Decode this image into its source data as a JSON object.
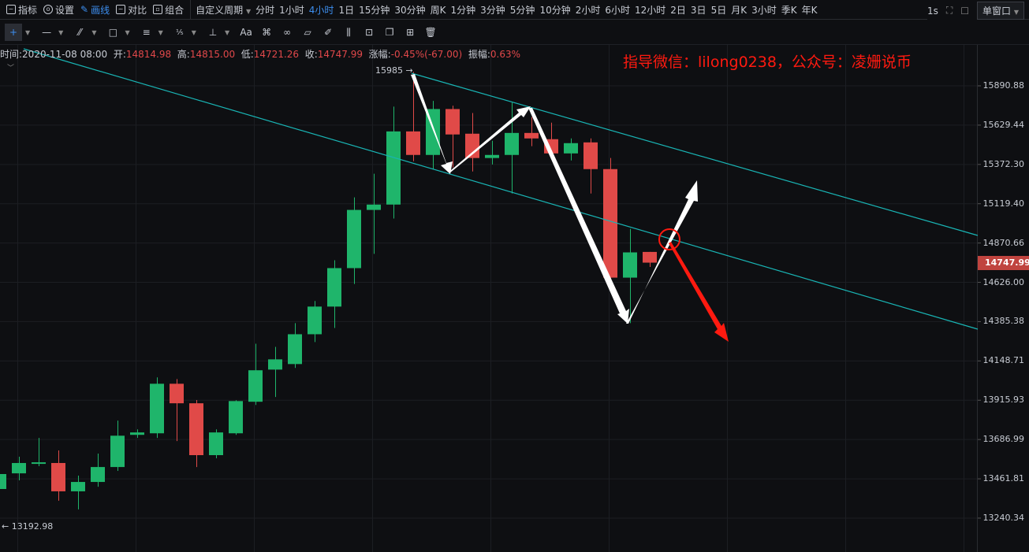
{
  "toolbar": {
    "items": [
      {
        "label": "指标",
        "icon": "chart-icon"
      },
      {
        "label": "设置",
        "icon": "gear-icon"
      },
      {
        "label": "画线",
        "icon": "pencil-icon",
        "active": true
      },
      {
        "label": "对比",
        "icon": "compare-icon"
      },
      {
        "label": "组合",
        "icon": "combine-icon"
      }
    ],
    "custom_period": "自定义周期",
    "periods": [
      "分时",
      "1小时",
      "4小时",
      "1日",
      "15分钟",
      "30分钟",
      "周K",
      "1分钟",
      "3分钟",
      "5分钟",
      "10分钟",
      "2小时",
      "6小时",
      "12小时",
      "2日",
      "3日",
      "5日",
      "月K",
      "3小时",
      "季K",
      "年K"
    ],
    "active_period": "4小时",
    "refresh": "1s",
    "window_mode": "单窗口"
  },
  "drawing_tools": [
    "crosshair",
    "horizontal-line",
    "trend-line",
    "rectangle",
    "parallel-lines",
    "fibonacci",
    "measure",
    "text",
    "pattern",
    "link",
    "ruler",
    "brush",
    "candles",
    "lock",
    "copy",
    "screenshot",
    "delete"
  ],
  "drawing_tool_text_label": "Aa",
  "info": {
    "time_label": "时间:",
    "time": "2020-11-08 08:00",
    "open_label": "开:",
    "open": "14814.98",
    "high_label": "高:",
    "high": "14815.00",
    "low_label": "低:",
    "low": "14721.26",
    "close_label": "收:",
    "close": "14747.99",
    "change_label": "涨幅:",
    "change": "-0.45%(-67.00)",
    "amplitude_label": "振幅:",
    "amplitude": "0.63%"
  },
  "watermark": "指导微信：lilong0238，公众号：凌姗说币",
  "chart_data": {
    "type": "candlestick",
    "scale": "log",
    "grid": true,
    "colors": {
      "up": "#1fb56b",
      "down": "#e04a48",
      "trendline": "#19b5b5",
      "annotation": "#ffffff",
      "warning": "#ff1a10"
    },
    "y_ticks": [
      "15890.88",
      "15629.44",
      "15372.30",
      "15119.40",
      "14870.66",
      "14626.00",
      "14385.38",
      "14148.71",
      "13915.93",
      "13686.99",
      "13461.81",
      "13240.34"
    ],
    "current_price": "14747.99",
    "high_marker": "15985",
    "low_marker": "13192.98",
    "candles": [
      [
        13404,
        13495,
        13395,
        13489
      ],
      [
        13493,
        13588,
        13453,
        13552
      ],
      [
        13547,
        13696,
        13534,
        13556
      ],
      [
        13552,
        13624,
        13338,
        13391
      ],
      [
        13391,
        13480,
        13289,
        13444
      ],
      [
        13444,
        13606,
        13417,
        13529
      ],
      [
        13529,
        13797,
        13507,
        13709
      ],
      [
        13714,
        13746,
        13696,
        13728
      ],
      [
        13723,
        14051,
        13696,
        14013
      ],
      [
        14013,
        14041,
        13678,
        13898
      ],
      [
        13898,
        13917,
        13529,
        13597
      ],
      [
        13597,
        13746,
        13579,
        13728
      ],
      [
        13723,
        13916,
        13714,
        13911
      ],
      [
        13907,
        14252,
        13888,
        14093
      ],
      [
        14097,
        14233,
        13935,
        14158
      ],
      [
        14130,
        14376,
        14107,
        14309
      ],
      [
        14309,
        14511,
        14262,
        14477
      ],
      [
        14477,
        14763,
        14347,
        14714
      ],
      [
        14714,
        15160,
        14616,
        15080
      ],
      [
        15080,
        15312,
        14803,
        15114
      ],
      [
        15114,
        15752,
        15025,
        15588
      ],
      [
        15588,
        15985,
        15393,
        15434
      ],
      [
        15434,
        15790,
        15342,
        15736
      ],
      [
        15736,
        15758,
        15352,
        15568
      ],
      [
        15573,
        15710,
        15327,
        15414
      ],
      [
        15414,
        15527,
        15372,
        15434
      ],
      [
        15434,
        15779,
        15185,
        15578
      ],
      [
        15578,
        15683,
        15491,
        15542
      ],
      [
        15537,
        15646,
        15414,
        15444
      ],
      [
        15444,
        15542,
        15398,
        15511
      ],
      [
        15516,
        15542,
        15185,
        15342
      ],
      [
        15342,
        15414,
        14616,
        14655
      ],
      [
        14655,
        14960,
        14376,
        14812
      ],
      [
        14814.98,
        14815.0,
        14721.26,
        14747.99
      ]
    ]
  }
}
